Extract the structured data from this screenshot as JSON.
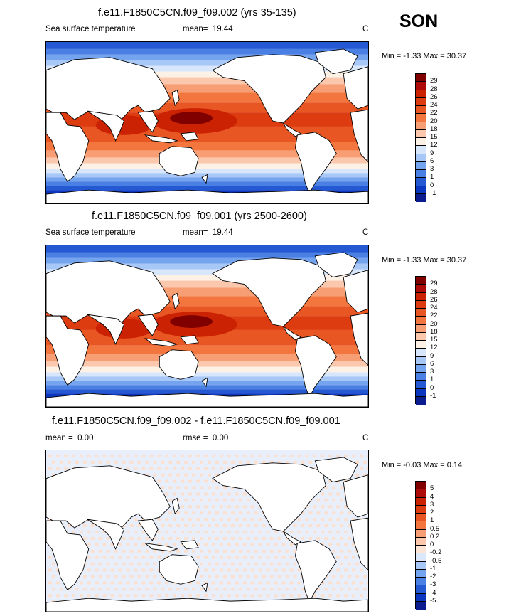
{
  "season": "SON",
  "units": "C",
  "panels": [
    {
      "title": "f.e11.F1850C5CN.f09_f09.002 (yrs 35-135)",
      "variable": "Sea surface temperature",
      "stat1": "mean=",
      "stat1_value": "19.44",
      "stat2": "",
      "stat2_value": "",
      "units": "C",
      "minmax": "Min = -1.33 Max = 30.37",
      "colorbar": [
        "29",
        "28",
        "26",
        "24",
        "22",
        "20",
        "18",
        "15",
        "12",
        "9",
        "6",
        "3",
        "1",
        "0",
        "-1"
      ]
    },
    {
      "title": "f.e11.F1850C5CN.f09_f09.001 (yrs 2500-2600)",
      "variable": "Sea surface temperature",
      "stat1": "mean=",
      "stat1_value": "19.44",
      "stat2": "",
      "stat2_value": "",
      "units": "C",
      "minmax": "Min = -1.33 Max = 30.37",
      "colorbar": [
        "29",
        "28",
        "26",
        "24",
        "22",
        "20",
        "18",
        "15",
        "12",
        "9",
        "6",
        "3",
        "1",
        "0",
        "-1"
      ]
    },
    {
      "title": "f.e11.F1850C5CN.f09_f09.002 - f.e11.F1850C5CN.f09_f09.001",
      "variable": "",
      "stat1": "mean =",
      "stat1_value": "0.00",
      "stat2": "rmse =",
      "stat2_value": "0.00",
      "units": "C",
      "minmax": "Min = -0.03 Max = 0.14",
      "colorbar": [
        "5",
        "4",
        "3",
        "2",
        "1",
        "0.5",
        "0.2",
        "0",
        "-0.2",
        "-0.5",
        "-1",
        "-2",
        "-3",
        "-4",
        "-5"
      ]
    }
  ],
  "colors": {
    "sst_scale": [
      "#800000",
      "#ad0a0a",
      "#cc2204",
      "#dd3b10",
      "#e85623",
      "#f2763e",
      "#f89e74",
      "#fbc7ad",
      "#fdf1e6",
      "#d7e6fb",
      "#a7c7f7",
      "#75a4ef",
      "#4a7fe3",
      "#2559d3",
      "#0b36c0",
      "#0a1c8e"
    ],
    "diff_scale": [
      "#800000",
      "#ad0a0a",
      "#cc2204",
      "#dd3b10",
      "#e85623",
      "#f2763e",
      "#f89e74",
      "#fbc7ad",
      "#fde5d6",
      "#dbe8fb",
      "#a7c7f7",
      "#75a4ef",
      "#4a7fe3",
      "#2559d3",
      "#0b36c0",
      "#0a1c8e"
    ],
    "land": "#ffffff",
    "coast": "#000000"
  }
}
